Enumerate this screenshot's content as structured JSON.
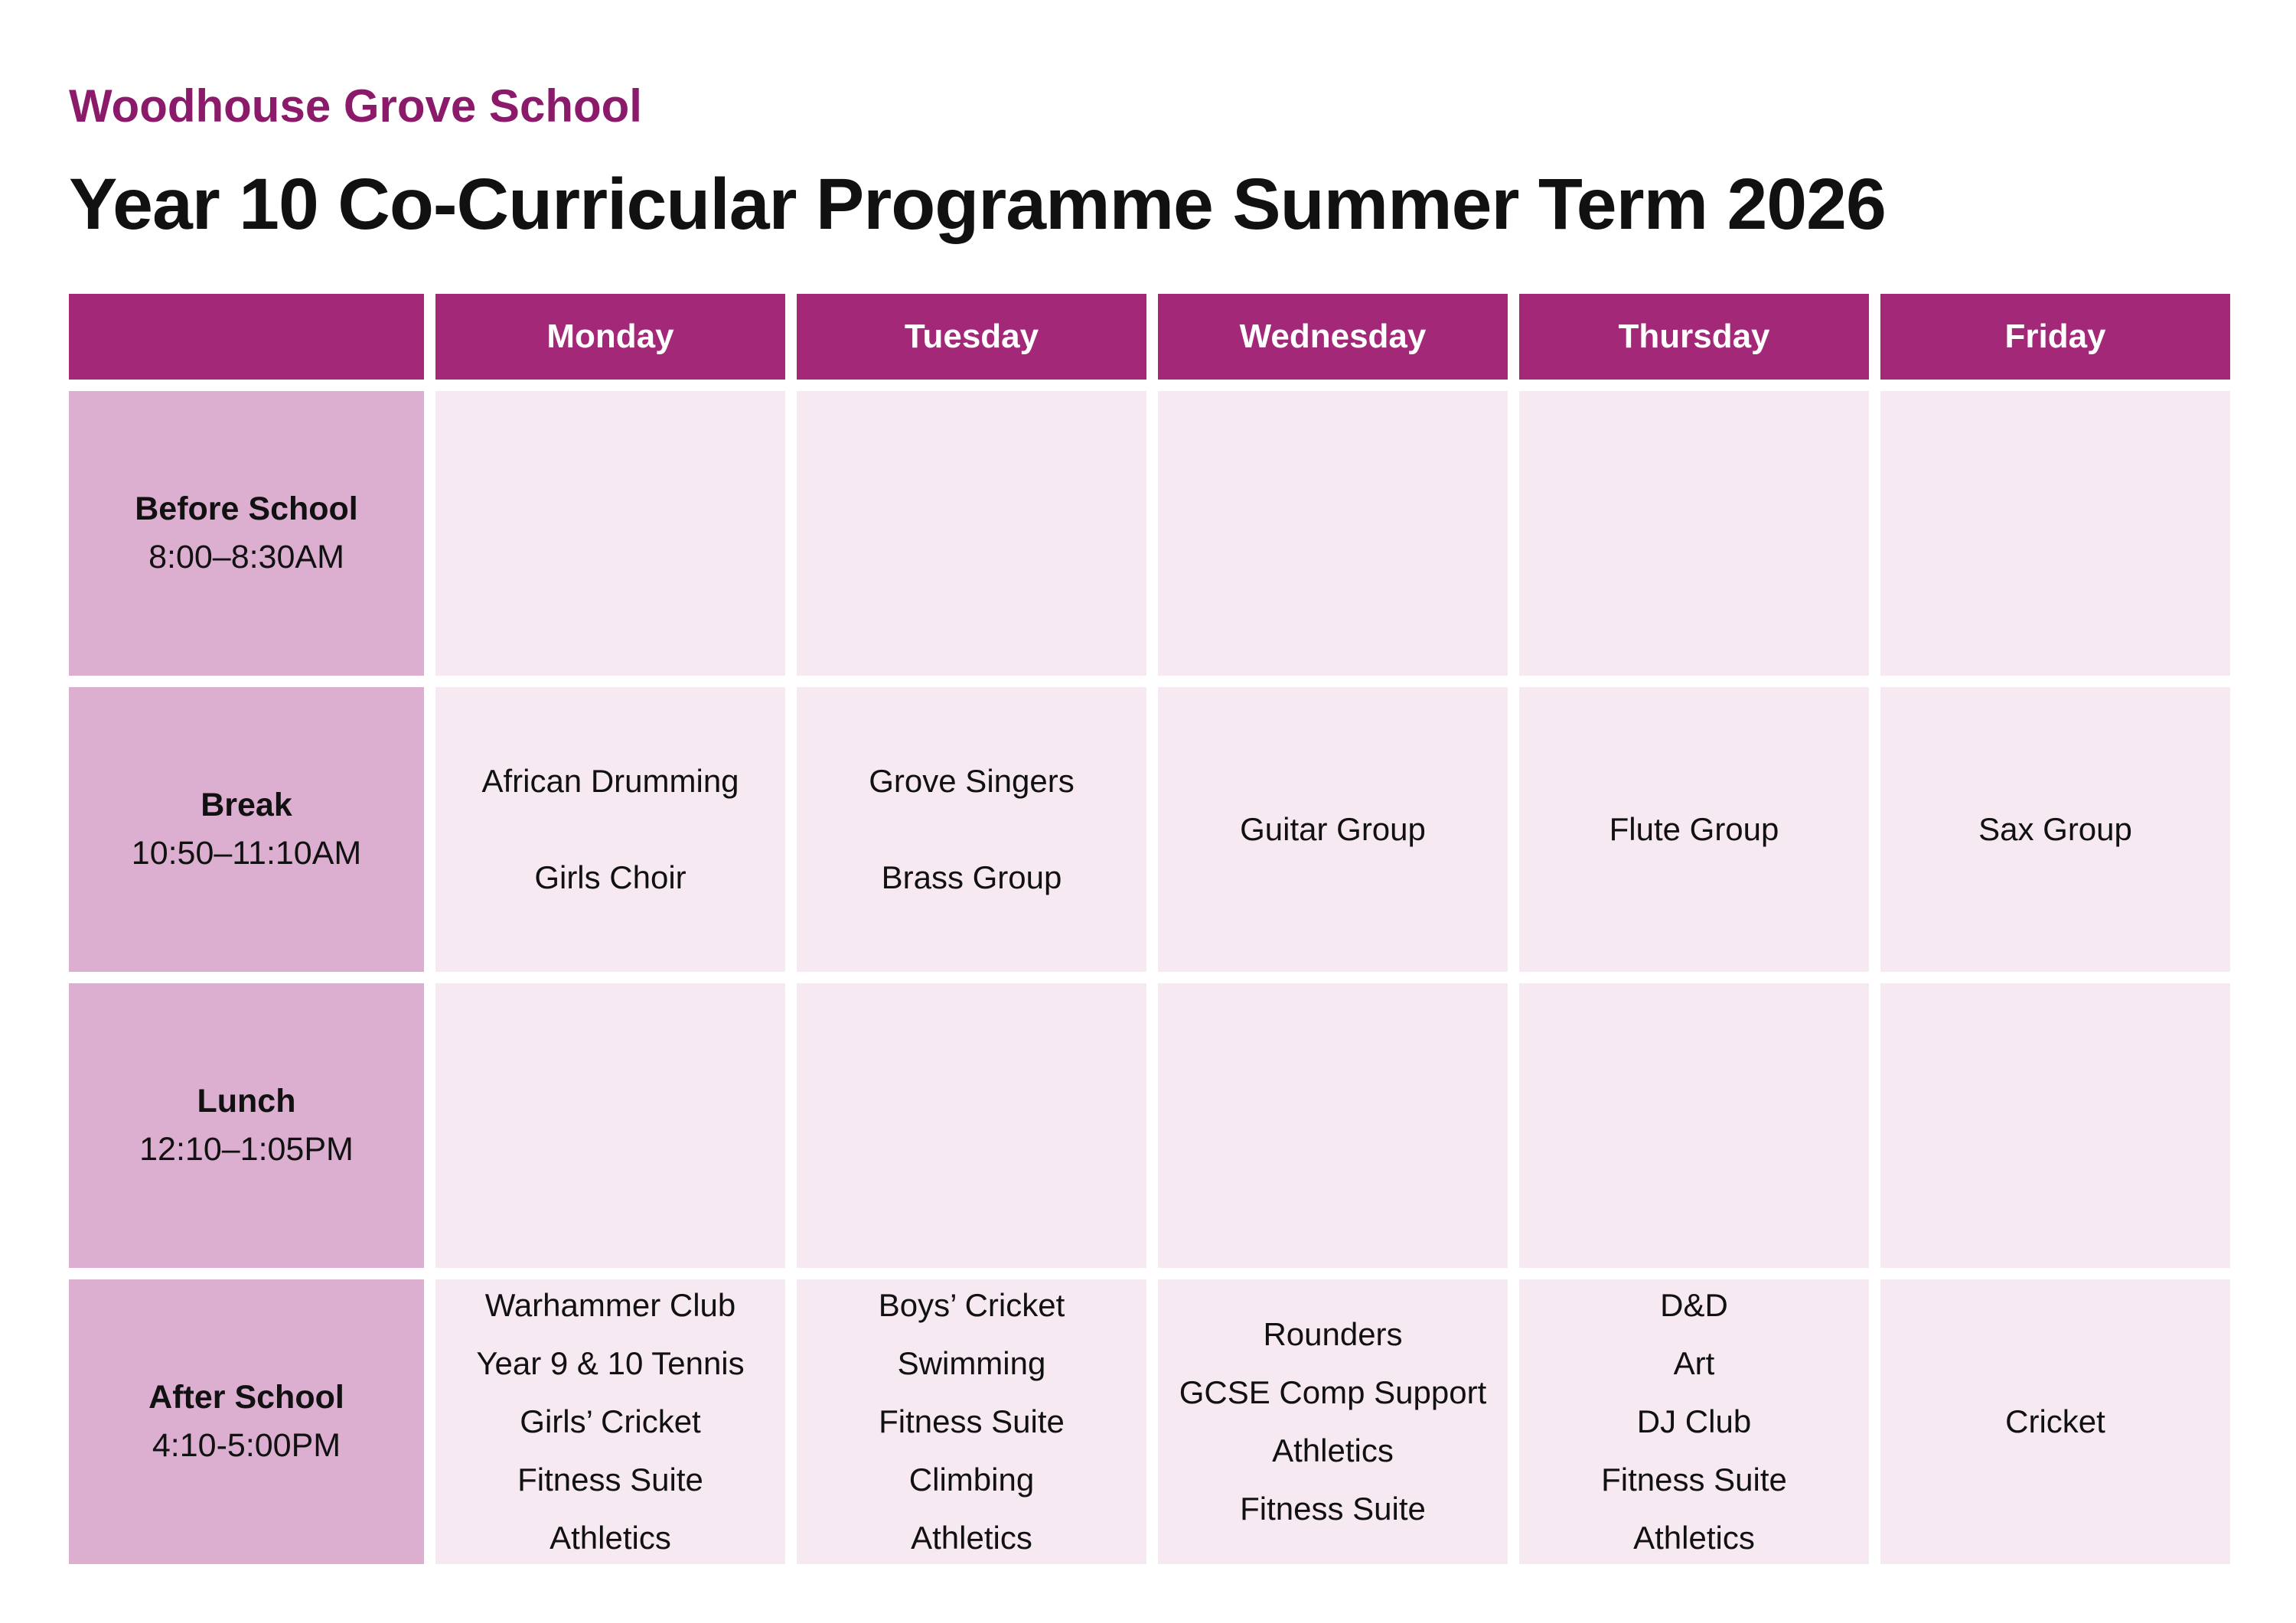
{
  "page": {
    "school_name": "Woodhouse Grove School",
    "title": "Year 10 Co-Curricular Programme Summer Term 2026"
  },
  "colors": {
    "header_bg": "#A32877",
    "row_label_bg": "#DCAFD1",
    "cell_bg": "#F7E9F2",
    "school_name_color": "#8C1A6A",
    "header_text": "#FFFFFF",
    "body_text": "#111111"
  },
  "table": {
    "columns": [
      "",
      "Monday",
      "Tuesday",
      "Wednesday",
      "Thursday",
      "Friday"
    ],
    "rows": [
      {
        "label": "Before School",
        "time": "8:00–8:30AM",
        "cells": [
          [],
          [],
          [],
          [],
          []
        ]
      },
      {
        "label": "Break",
        "time": "10:50–11:10AM",
        "cells": [
          [
            "African Drumming",
            "Girls Choir"
          ],
          [
            "Grove Singers",
            "Brass Group"
          ],
          [
            "Guitar Group"
          ],
          [
            "Flute Group"
          ],
          [
            "Sax Group"
          ]
        ]
      },
      {
        "label": "Lunch",
        "time": "12:10–1:05PM",
        "cells": [
          [],
          [],
          [],
          [],
          []
        ]
      },
      {
        "label": "After School",
        "time": "4:10-5:00PM",
        "cells": [
          [
            "Warhammer Club",
            "Year 9 & 10 Tennis",
            "Girls’ Cricket",
            "Fitness Suite",
            "Athletics"
          ],
          [
            "Boys’ Cricket",
            "Swimming",
            "Fitness Suite",
            "Climbing",
            "Athletics"
          ],
          [
            "Rounders",
            "GCSE Comp Support",
            "Athletics",
            "Fitness Suite"
          ],
          [
            "D&D",
            "Art",
            "DJ Club",
            "Fitness Suite",
            "Athletics"
          ],
          [
            "Cricket"
          ]
        ]
      }
    ]
  }
}
